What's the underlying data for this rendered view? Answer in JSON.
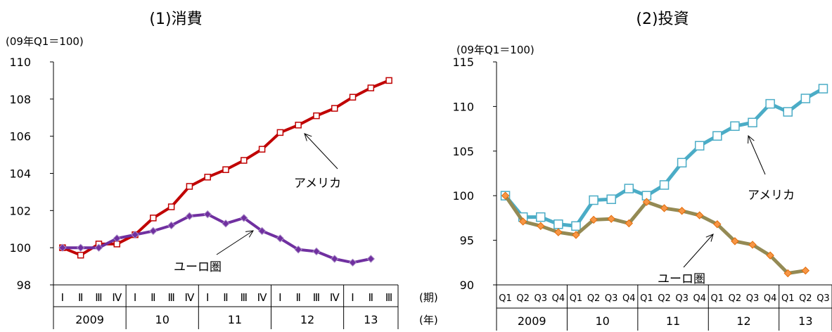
{
  "chart_data": [
    {
      "type": "line",
      "title": "(1)消費",
      "unit_label": "(09年Q1＝100)",
      "ylim": [
        98,
        110
      ],
      "yticks": [
        98,
        100,
        102,
        104,
        106,
        108,
        110
      ],
      "x_ticks": [
        "Ⅰ",
        "Ⅱ",
        "Ⅲ",
        "Ⅳ",
        "Ⅰ",
        "Ⅱ",
        "Ⅲ",
        "Ⅳ",
        "Ⅰ",
        "Ⅱ",
        "Ⅲ",
        "Ⅳ",
        "Ⅰ",
        "Ⅱ",
        "Ⅲ",
        "Ⅳ",
        "Ⅰ",
        "Ⅱ",
        "Ⅲ"
      ],
      "years": [
        "2009",
        "10",
        "11",
        "12",
        "13"
      ],
      "x_period_label": "(期)",
      "x_year_label": "(年)",
      "series": [
        {
          "name": "アメリカ",
          "color": "#c00000",
          "marker": "square-open",
          "values": [
            100,
            99.6,
            100.2,
            100.2,
            100.7,
            101.6,
            102.2,
            103.3,
            103.8,
            104.2,
            104.7,
            105.3,
            106.2,
            106.6,
            107.1,
            107.5,
            108.1,
            108.6,
            109.0
          ]
        },
        {
          "name": "ユーロ圏",
          "color": "#7030a0",
          "marker": "diamond",
          "values": [
            100,
            100,
            100,
            100.5,
            100.7,
            100.9,
            101.2,
            101.7,
            101.8,
            101.3,
            101.6,
            100.9,
            100.5,
            99.9,
            99.8,
            99.4,
            99.2,
            99.4
          ]
        }
      ]
    },
    {
      "type": "line",
      "title": "(2)投資",
      "unit_label": "(09年Q1＝100)",
      "ylim": [
        90,
        115
      ],
      "yticks": [
        90,
        95,
        100,
        105,
        110,
        115
      ],
      "x_ticks": [
        "Q1",
        "Q2",
        "Q3",
        "Q4",
        "Q1",
        "Q2",
        "Q3",
        "Q4",
        "Q1",
        "Q2",
        "Q3",
        "Q4",
        "Q1",
        "Q2",
        "Q3",
        "Q4",
        "Q1",
        "Q2",
        "Q3"
      ],
      "years": [
        "2009",
        "10",
        "11",
        "12",
        "13"
      ],
      "series": [
        {
          "name": "アメリカ",
          "color": "#4bacc6",
          "marker": "square-open",
          "values": [
            100,
            97.6,
            97.6,
            96.8,
            96.6,
            99.5,
            99.6,
            100.8,
            100.0,
            101.2,
            103.7,
            105.6,
            106.7,
            107.8,
            108.2,
            110.3,
            109.4,
            110.9,
            112.0
          ]
        },
        {
          "name": "ユーロ圏",
          "color": "#948a54",
          "marker": "diamond",
          "values": [
            100,
            97.1,
            96.6,
            95.9,
            95.6,
            97.3,
            97.4,
            96.9,
            99.3,
            98.6,
            98.3,
            97.8,
            96.8,
            94.9,
            94.5,
            93.3,
            91.3,
            91.6
          ]
        }
      ]
    }
  ]
}
